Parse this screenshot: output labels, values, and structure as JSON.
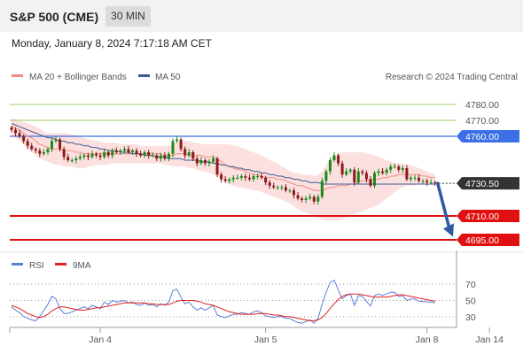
{
  "header": {
    "symbol": "S&P 500 (CME)",
    "timeframe": "30 MIN"
  },
  "datetime": "Monday, January 8, 2024 7:17:18 AM CET",
  "legend": {
    "main": [
      {
        "label": "MA 20 + Bollinger Bands",
        "color": "#f28b82"
      },
      {
        "label": "MA 50",
        "color": "#3b5b92"
      }
    ],
    "rsi": [
      {
        "label": "RSI",
        "color": "#5b7fd6"
      },
      {
        "label": "9MA",
        "color": "#e02020"
      }
    ]
  },
  "credit": "Research © 2024 Trading Central",
  "colors": {
    "bull": "#1a8a1a",
    "bear": "#8b1a1a",
    "support": "#e01010",
    "pivot": "#3c6ee6",
    "resistance": "#9ccc65",
    "arrow": "#2c5aa0"
  },
  "chart_data": [
    {
      "type": "candlestick",
      "ylim": [
        4690,
        4790
      ],
      "price_labels": {
        "r2": "4780.00",
        "r1": "4770.00",
        "pivot": "4760.00",
        "last": "4730.50",
        "s1": "4710.00",
        "s2": "4695.00"
      },
      "levels": [
        {
          "name": "resistance-2",
          "value": 4780.0,
          "kind": "resistance"
        },
        {
          "name": "resistance-1",
          "value": 4770.0,
          "kind": "resistance"
        },
        {
          "name": "pivot",
          "value": 4760.0,
          "kind": "pivot"
        },
        {
          "name": "support-1",
          "value": 4710.0,
          "kind": "support"
        },
        {
          "name": "support-2",
          "value": 4695.0,
          "kind": "support"
        }
      ],
      "last_price": 4730.5,
      "close": [
        4764,
        4762,
        4760,
        4757,
        4754,
        4752,
        4751,
        4749,
        4750,
        4752,
        4757,
        4758,
        4752,
        4747,
        4745,
        4745,
        4746,
        4747,
        4748,
        4747,
        4749,
        4748,
        4747,
        4750,
        4748,
        4751,
        4750,
        4751,
        4752,
        4750,
        4751,
        4749,
        4748,
        4750,
        4748,
        4748,
        4746,
        4748,
        4746,
        4749,
        4757,
        4758,
        4752,
        4748,
        4750,
        4746,
        4743,
        4745,
        4743,
        4744,
        4746,
        4736,
        4733,
        4732,
        4733,
        4734,
        4734,
        4735,
        4734,
        4733,
        4735,
        4735,
        4734,
        4731,
        4729,
        4728,
        4728,
        4728,
        4726,
        4726,
        4723,
        4721,
        4720,
        4721,
        4722,
        4719,
        4722,
        4732,
        4738,
        4745,
        4748,
        4743,
        4736,
        4738,
        4739,
        4731,
        4738,
        4737,
        4733,
        4729,
        4737,
        4738,
        4737,
        4739,
        4741,
        4741,
        4739,
        4740,
        4733,
        4734,
        4734,
        4732,
        4732,
        4731,
        4731,
        4730.5
      ],
      "ma20": [
        4766,
        4765,
        4764,
        4762,
        4760,
        4759,
        4757,
        4755,
        4754,
        4753,
        4752,
        4752,
        4752,
        4751,
        4751,
        4751,
        4750,
        4750,
        4749,
        4749,
        4749,
        4749,
        4749,
        4749,
        4749,
        4749,
        4749,
        4749,
        4749,
        4749,
        4749,
        4749,
        4749,
        4749,
        4749,
        4749,
        4749,
        4749,
        4748,
        4748,
        4748,
        4749,
        4749,
        4749,
        4748,
        4748,
        4748,
        4748,
        4747,
        4747,
        4747,
        4746,
        4744,
        4742,
        4741,
        4740,
        4739,
        4739,
        4738,
        4737,
        4736,
        4736,
        4735,
        4734,
        4734,
        4734,
        4733,
        4733,
        4732,
        4731,
        4730,
        4729,
        4729,
        4728,
        4727,
        4726,
        4726,
        4726,
        4727,
        4728,
        4728,
        4729,
        4729,
        4729,
        4730,
        4730,
        4731,
        4732,
        4732,
        4733,
        4733,
        4733,
        4734,
        4734,
        4735,
        4735,
        4736,
        4736,
        4736,
        4736,
        4736,
        4736,
        4735,
        4735,
        4734,
        4734
      ],
      "bb_upper": [
        4771,
        4771,
        4770,
        4769,
        4768,
        4767,
        4766,
        4765,
        4763,
        4762,
        4762,
        4762,
        4762,
        4762,
        4762,
        4761,
        4761,
        4760,
        4759,
        4758,
        4758,
        4757,
        4757,
        4756,
        4756,
        4756,
        4756,
        4755,
        4755,
        4755,
        4755,
        4755,
        4754,
        4754,
        4754,
        4754,
        4754,
        4754,
        4754,
        4754,
        4755,
        4756,
        4757,
        4757,
        4757,
        4756,
        4756,
        4755,
        4755,
        4755,
        4755,
        4755,
        4755,
        4755,
        4755,
        4754,
        4754,
        4753,
        4752,
        4751,
        4750,
        4749,
        4748,
        4747,
        4745,
        4744,
        4743,
        4741,
        4740,
        4738,
        4737,
        4737,
        4736,
        4736,
        4736,
        4735,
        4736,
        4738,
        4742,
        4746,
        4748,
        4749,
        4750,
        4750,
        4750,
        4750,
        4750,
        4750,
        4749,
        4749,
        4748,
        4747,
        4746,
        4745,
        4744,
        4743,
        4743,
        4743,
        4742,
        4742,
        4741,
        4740,
        4739,
        4738,
        4737,
        4736
      ],
      "bb_lower": [
        4761,
        4759,
        4757,
        4755,
        4752,
        4750,
        4748,
        4746,
        4745,
        4744,
        4743,
        4742,
        4742,
        4741,
        4741,
        4741,
        4740,
        4740,
        4740,
        4741,
        4741,
        4742,
        4742,
        4742,
        4742,
        4743,
        4743,
        4743,
        4743,
        4743,
        4743,
        4743,
        4743,
        4743,
        4743,
        4743,
        4743,
        4743,
        4742,
        4742,
        4741,
        4741,
        4741,
        4741,
        4740,
        4740,
        4739,
        4738,
        4738,
        4737,
        4736,
        4735,
        4733,
        4731,
        4730,
        4729,
        4728,
        4728,
        4727,
        4727,
        4726,
        4726,
        4725,
        4724,
        4723,
        4722,
        4721,
        4720,
        4719,
        4718,
        4716,
        4714,
        4713,
        4712,
        4711,
        4710,
        4709,
        4708,
        4707,
        4707,
        4707,
        4707,
        4708,
        4709,
        4710,
        4711,
        4712,
        4713,
        4714,
        4715,
        4716,
        4717,
        4719,
        4721,
        4723,
        4725,
        4727,
        4728,
        4729,
        4729,
        4729,
        4730,
        4730,
        4731,
        4731,
        4731
      ],
      "ma50": [
        4768,
        4767,
        4766,
        4765,
        4764,
        4763,
        4762,
        4761,
        4760,
        4759,
        4759,
        4758,
        4757,
        4757,
        4756,
        4756,
        4755,
        4755,
        4754,
        4754,
        4753,
        4753,
        4752,
        4752,
        4751,
        4751,
        4751,
        4750,
        4750,
        4750,
        4749,
        4749,
        4749,
        4748,
        4748,
        4748,
        4747,
        4747,
        4747,
        4746,
        4746,
        4746,
        4746,
        4745,
        4745,
        4745,
        4745,
        4744,
        4744,
        4744,
        4743,
        4743,
        4742,
        4742,
        4741,
        4741,
        4740,
        4740,
        4739,
        4739,
        4738,
        4738,
        4737,
        4737,
        4736,
        4736,
        4735,
        4735,
        4734,
        4734,
        4733,
        4733,
        4732,
        4732,
        4731,
        4731,
        4731,
        4730,
        4730,
        4730,
        4730,
        4730,
        4730,
        4730,
        4730,
        4730,
        4730,
        4730,
        4730,
        4730,
        4730,
        4730,
        4730,
        4730,
        4730,
        4730,
        4730,
        4730,
        4730,
        4730,
        4730,
        4730,
        4730,
        4730,
        4730,
        4730
      ],
      "forecast": {
        "from": 4730.5,
        "to": 4697
      },
      "x_labels": [
        {
          "label": "Jan 4",
          "index": 22
        },
        {
          "label": "Jan 5",
          "index": 63
        },
        {
          "label": "Jan 8",
          "index": 103
        },
        {
          "label": "Jan 14",
          "index": 118.5
        }
      ]
    },
    {
      "type": "line",
      "ylim": [
        20,
        80
      ],
      "y_ticks": [
        70,
        50,
        30
      ],
      "series": [
        {
          "name": "RSI",
          "values": [
            42,
            38,
            35,
            30,
            28,
            26,
            25,
            30,
            38,
            45,
            55,
            52,
            40,
            34,
            34,
            36,
            38,
            40,
            42,
            40,
            44,
            42,
            40,
            48,
            45,
            50,
            48,
            49,
            50,
            47,
            48,
            45,
            44,
            47,
            44,
            45,
            42,
            46,
            44,
            48,
            62,
            64,
            54,
            46,
            48,
            42,
            38,
            41,
            38,
            41,
            44,
            32,
            30,
            29,
            31,
            33,
            33,
            35,
            34,
            33,
            36,
            37,
            35,
            31,
            30,
            29,
            30,
            30,
            28,
            28,
            25,
            23,
            22,
            24,
            26,
            22,
            28,
            45,
            60,
            72,
            75,
            63,
            52,
            56,
            58,
            44,
            56,
            55,
            49,
            43,
            56,
            58,
            56,
            58,
            60,
            60,
            55,
            56,
            50,
            52,
            52,
            49,
            49,
            48,
            48,
            47
          ]
        },
        {
          "name": "9MA",
          "values": [
            44,
            42,
            40,
            37,
            34,
            32,
            30,
            29,
            30,
            33,
            37,
            40,
            42,
            42,
            41,
            40,
            39,
            38,
            38,
            39,
            40,
            41,
            41,
            42,
            43,
            44,
            45,
            46,
            47,
            47,
            47,
            47,
            47,
            47,
            46,
            46,
            45,
            45,
            45,
            45,
            47,
            49,
            50,
            50,
            50,
            50,
            49,
            48,
            46,
            45,
            44,
            42,
            40,
            38,
            36,
            35,
            34,
            33,
            33,
            33,
            33,
            34,
            34,
            34,
            33,
            32,
            32,
            31,
            30,
            30,
            29,
            28,
            27,
            26,
            25,
            25,
            26,
            29,
            34,
            40,
            46,
            51,
            55,
            57,
            58,
            58,
            58,
            57,
            56,
            55,
            54,
            54,
            54,
            54,
            55,
            56,
            57,
            57,
            56,
            55,
            54,
            53,
            52,
            51,
            50,
            49
          ]
        }
      ]
    }
  ]
}
